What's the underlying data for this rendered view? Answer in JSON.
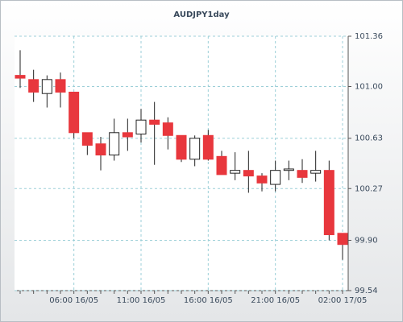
{
  "chart_data": {
    "type": "candlestick",
    "title": "AUDJPY1day",
    "categories": [
      null,
      null,
      null,
      null,
      "06:00 16/05",
      null,
      null,
      null,
      null,
      "11:00 16/05",
      null,
      null,
      null,
      null,
      "16:00 16/05",
      null,
      null,
      null,
      null,
      "21:00 16/05",
      null,
      null,
      null,
      null,
      "02:00 17/05"
    ],
    "open": [
      101.08,
      101.05,
      100.95,
      101.05,
      100.96,
      100.67,
      100.59,
      100.51,
      100.67,
      100.66,
      100.76,
      100.74,
      100.65,
      100.48,
      100.65,
      100.5,
      100.38,
      100.4,
      100.36,
      100.3,
      100.4,
      100.4,
      100.38,
      100.4,
      99.95
    ],
    "high": [
      101.26,
      101.12,
      101.08,
      101.1,
      100.96,
      100.67,
      100.64,
      100.77,
      100.77,
      100.84,
      100.89,
      100.78,
      100.65,
      100.65,
      100.69,
      100.54,
      100.53,
      100.54,
      100.38,
      100.47,
      100.47,
      100.48,
      100.54,
      100.47,
      99.95
    ],
    "low": [
      100.99,
      100.89,
      100.85,
      100.85,
      100.63,
      100.51,
      100.4,
      100.47,
      100.54,
      100.6,
      100.44,
      100.55,
      100.46,
      100.43,
      100.47,
      100.37,
      100.33,
      100.24,
      100.25,
      100.25,
      100.33,
      100.31,
      100.32,
      99.9,
      99.76
    ],
    "close": [
      101.06,
      100.96,
      101.05,
      100.96,
      100.67,
      100.58,
      100.51,
      100.67,
      100.64,
      100.76,
      100.73,
      100.65,
      100.48,
      100.63,
      100.48,
      100.37,
      100.4,
      100.36,
      100.31,
      100.4,
      100.41,
      100.35,
      100.4,
      99.94,
      99.87
    ],
    "up_color": "#ffffff",
    "down_color": "#e8373d",
    "ylim": [
      99.54,
      101.36
    ],
    "yticks": [
      99.54,
      {
        "value": 99.9,
        "label": "99.90"
      },
      100.27,
      100.63,
      {
        "value": 101.0,
        "label": "101.00"
      },
      101.36
    ],
    "grid": true
  }
}
